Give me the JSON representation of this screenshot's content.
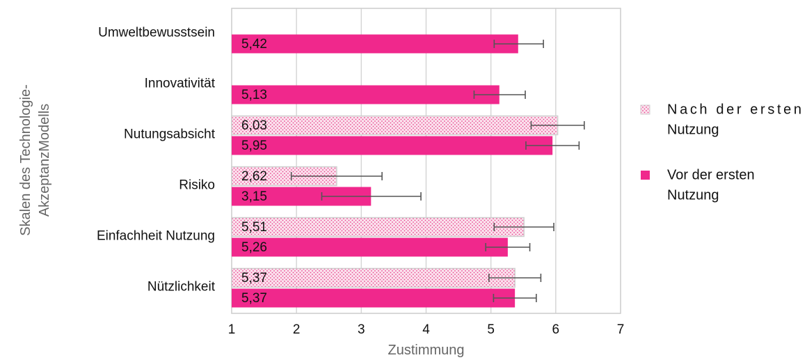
{
  "chart_data": {
    "type": "bar",
    "orientation": "horizontal",
    "categories": [
      "Umweltbewusstsein",
      "Innovativität",
      "Nutungsabsicht",
      "Risiko",
      "Einfachheit Nutzung",
      "Nützlichkeit"
    ],
    "series": [
      {
        "name": "Nach der ersten Nutzung",
        "values": [
          null,
          null,
          6.03,
          2.62,
          5.51,
          5.37
        ],
        "labels": [
          null,
          null,
          "6,03",
          "2,62",
          "5,51",
          "5,37"
        ],
        "error_low": [
          null,
          null,
          5.62,
          1.92,
          5.05,
          4.97
        ],
        "error_high": [
          null,
          null,
          6.44,
          3.32,
          5.97,
          5.77
        ],
        "color": "#f7c6dc",
        "pattern": "dotted"
      },
      {
        "name": "Vor der ersten Nutzung",
        "values": [
          5.42,
          5.13,
          5.95,
          3.15,
          5.26,
          5.37
        ],
        "labels": [
          "5,42",
          "5,13",
          "5,95",
          "3,15",
          "5,26",
          "5,37"
        ],
        "error_low": [
          5.05,
          4.74,
          5.54,
          2.39,
          4.92,
          5.04
        ],
        "error_high": [
          5.81,
          5.53,
          6.36,
          3.92,
          5.6,
          5.7
        ],
        "color": "#f0288c"
      }
    ],
    "xlabel": "Zustimmung",
    "ylabel_lines": [
      "Skalen des Technologie-",
      "AkzeptanzModells"
    ],
    "xlim": [
      1,
      7
    ],
    "xticks": [
      "1",
      "2",
      "3",
      "4",
      "5",
      "6",
      "7"
    ],
    "grid": true,
    "legend_position": "right",
    "legend": [
      {
        "lines": [
          "Nach der ersten",
          "Nutzung"
        ],
        "pattern": "dotted",
        "color": "#f7c6dc"
      },
      {
        "lines": [
          "Vor der ersten",
          "Nutzung"
        ],
        "color": "#f0288c"
      }
    ]
  }
}
